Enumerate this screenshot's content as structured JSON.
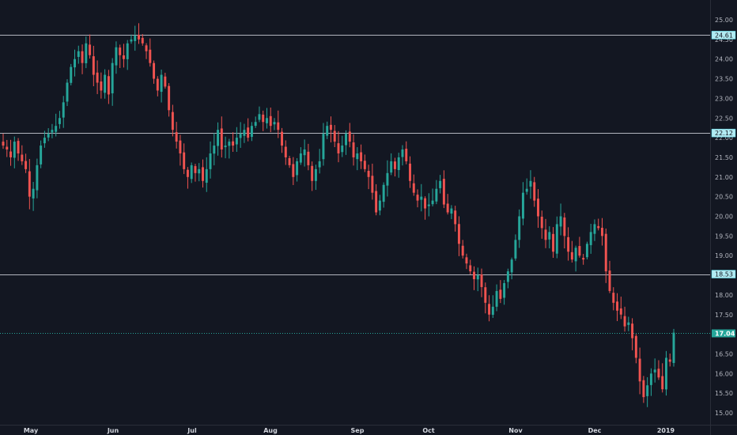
{
  "chart_data": {
    "type": "candlestick",
    "ylim": [
      14.8,
      25.3
    ],
    "y_ticks": [
      "25.00",
      "24.50",
      "24.00",
      "23.50",
      "23.00",
      "22.50",
      "22.00",
      "21.50",
      "21.00",
      "20.50",
      "20.00",
      "19.50",
      "19.00",
      "18.50",
      "18.00",
      "17.50",
      "17.00",
      "16.50",
      "16.00",
      "15.50",
      "15.00"
    ],
    "x_ticks": [
      "May",
      "Jun",
      "Jul",
      "Aug",
      "Sep",
      "Oct",
      "Nov",
      "Dec",
      "2019"
    ],
    "horizontal_levels": [
      {
        "value": 24.61,
        "label": "24.61"
      },
      {
        "value": 22.12,
        "label": "22.12"
      },
      {
        "value": 18.53,
        "label": "18.53"
      }
    ],
    "last_price": {
      "value": 17.04,
      "label": "17.04"
    },
    "colors": {
      "up": "#26a69a",
      "down": "#ef5350",
      "background": "#131722",
      "level_line": "#b2b5be",
      "last_price": "#26a69a"
    },
    "closes": [
      21.8,
      21.7,
      21.5,
      21.9,
      21.6,
      21.4,
      21.2,
      20.5,
      20.7,
      21.3,
      21.8,
      22.0,
      22.1,
      22.2,
      22.3,
      22.5,
      22.9,
      23.4,
      23.8,
      24.0,
      24.2,
      23.9,
      24.4,
      24.1,
      23.6,
      23.4,
      23.2,
      23.6,
      23.1,
      23.9,
      24.3,
      24.1,
      24.0,
      24.4,
      24.5,
      24.6,
      24.5,
      24.4,
      24.2,
      23.9,
      23.5,
      23.2,
      23.6,
      23.3,
      22.7,
      22.2,
      21.9,
      21.6,
      21.2,
      21.0,
      21.3,
      21.1,
      21.2,
      20.9,
      21.2,
      21.6,
      21.8,
      22.2,
      21.7,
      21.8,
      21.9,
      21.8,
      22.0,
      22.1,
      22.2,
      22.0,
      22.3,
      22.4,
      22.6,
      22.4,
      22.5,
      22.3,
      22.4,
      22.2,
      21.8,
      21.5,
      21.3,
      21.0,
      21.4,
      21.6,
      21.7,
      21.3,
      20.9,
      21.2,
      21.4,
      22.1,
      22.3,
      22.2,
      21.9,
      21.6,
      21.8,
      22.1,
      21.9,
      21.5,
      21.6,
      21.4,
      21.2,
      21.0,
      20.6,
      20.1,
      20.4,
      20.8,
      21.1,
      21.4,
      21.2,
      21.5,
      21.7,
      21.4,
      20.9,
      20.6,
      20.4,
      20.5,
      20.2,
      20.3,
      20.4,
      20.7,
      20.9,
      20.3,
      20.1,
      20.2,
      19.8,
      19.3,
      19.0,
      18.8,
      18.6,
      18.4,
      18.5,
      18.2,
      17.8,
      17.5,
      17.7,
      18.1,
      17.9,
      18.3,
      18.6,
      18.9,
      19.4,
      20.0,
      20.6,
      20.7,
      20.9,
      20.4,
      20.0,
      19.7,
      19.4,
      19.6,
      19.1,
      19.8,
      20.0,
      19.5,
      19.1,
      18.9,
      19.2,
      19.0,
      18.9,
      19.3,
      19.6,
      19.8,
      19.7,
      19.5,
      18.6,
      18.1,
      17.8,
      17.6,
      17.5,
      17.2,
      17.3,
      16.9,
      16.4,
      15.8,
      15.4,
      15.7,
      16.0,
      16.1,
      15.9,
      15.6,
      16.4,
      16.3,
      17.04
    ]
  }
}
